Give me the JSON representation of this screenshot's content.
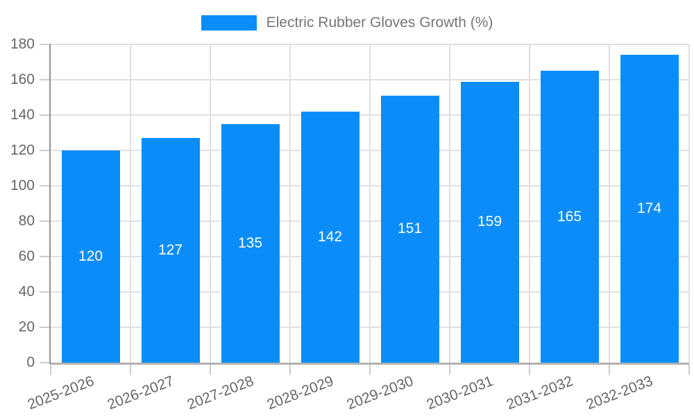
{
  "chart_data": {
    "type": "bar",
    "title": "Electric Rubber Gloves Growth (%)",
    "legend": {
      "position": "top",
      "label": "Electric Rubber Gloves Growth (%)"
    },
    "categories": [
      "2025-2026",
      "2026-2027",
      "2027-2028",
      "2028-2029",
      "2029-2030",
      "2030-2031",
      "2031-2032",
      "2032-2033"
    ],
    "series": [
      {
        "name": "Electric Rubber Gloves Growth (%)",
        "values": [
          120,
          127,
          135,
          142,
          151,
          159,
          165,
          174
        ],
        "color": "#0A8DF8"
      }
    ],
    "bar_value_labels": [
      "120",
      "127",
      "135",
      "142",
      "151",
      "159",
      "165",
      "174"
    ],
    "xlabel": "",
    "ylabel": "",
    "ylim": [
      0,
      180
    ],
    "yticks": [
      0,
      20,
      40,
      60,
      80,
      100,
      120,
      140,
      160,
      180
    ],
    "grid": true,
    "x_tick_rotation_deg": -21
  },
  "colors": {
    "bar": "#0A8DF8",
    "bar_value_label": "#FFFFFF",
    "grid_line": "#E0E0E0",
    "y_axis_line": "#919191",
    "x_axis_line": "#B0B0B0",
    "tick_mark": "#CCCCCC",
    "axis_label_text": "#666666",
    "legend_text": "#757575",
    "background": "#FFFFFF"
  }
}
